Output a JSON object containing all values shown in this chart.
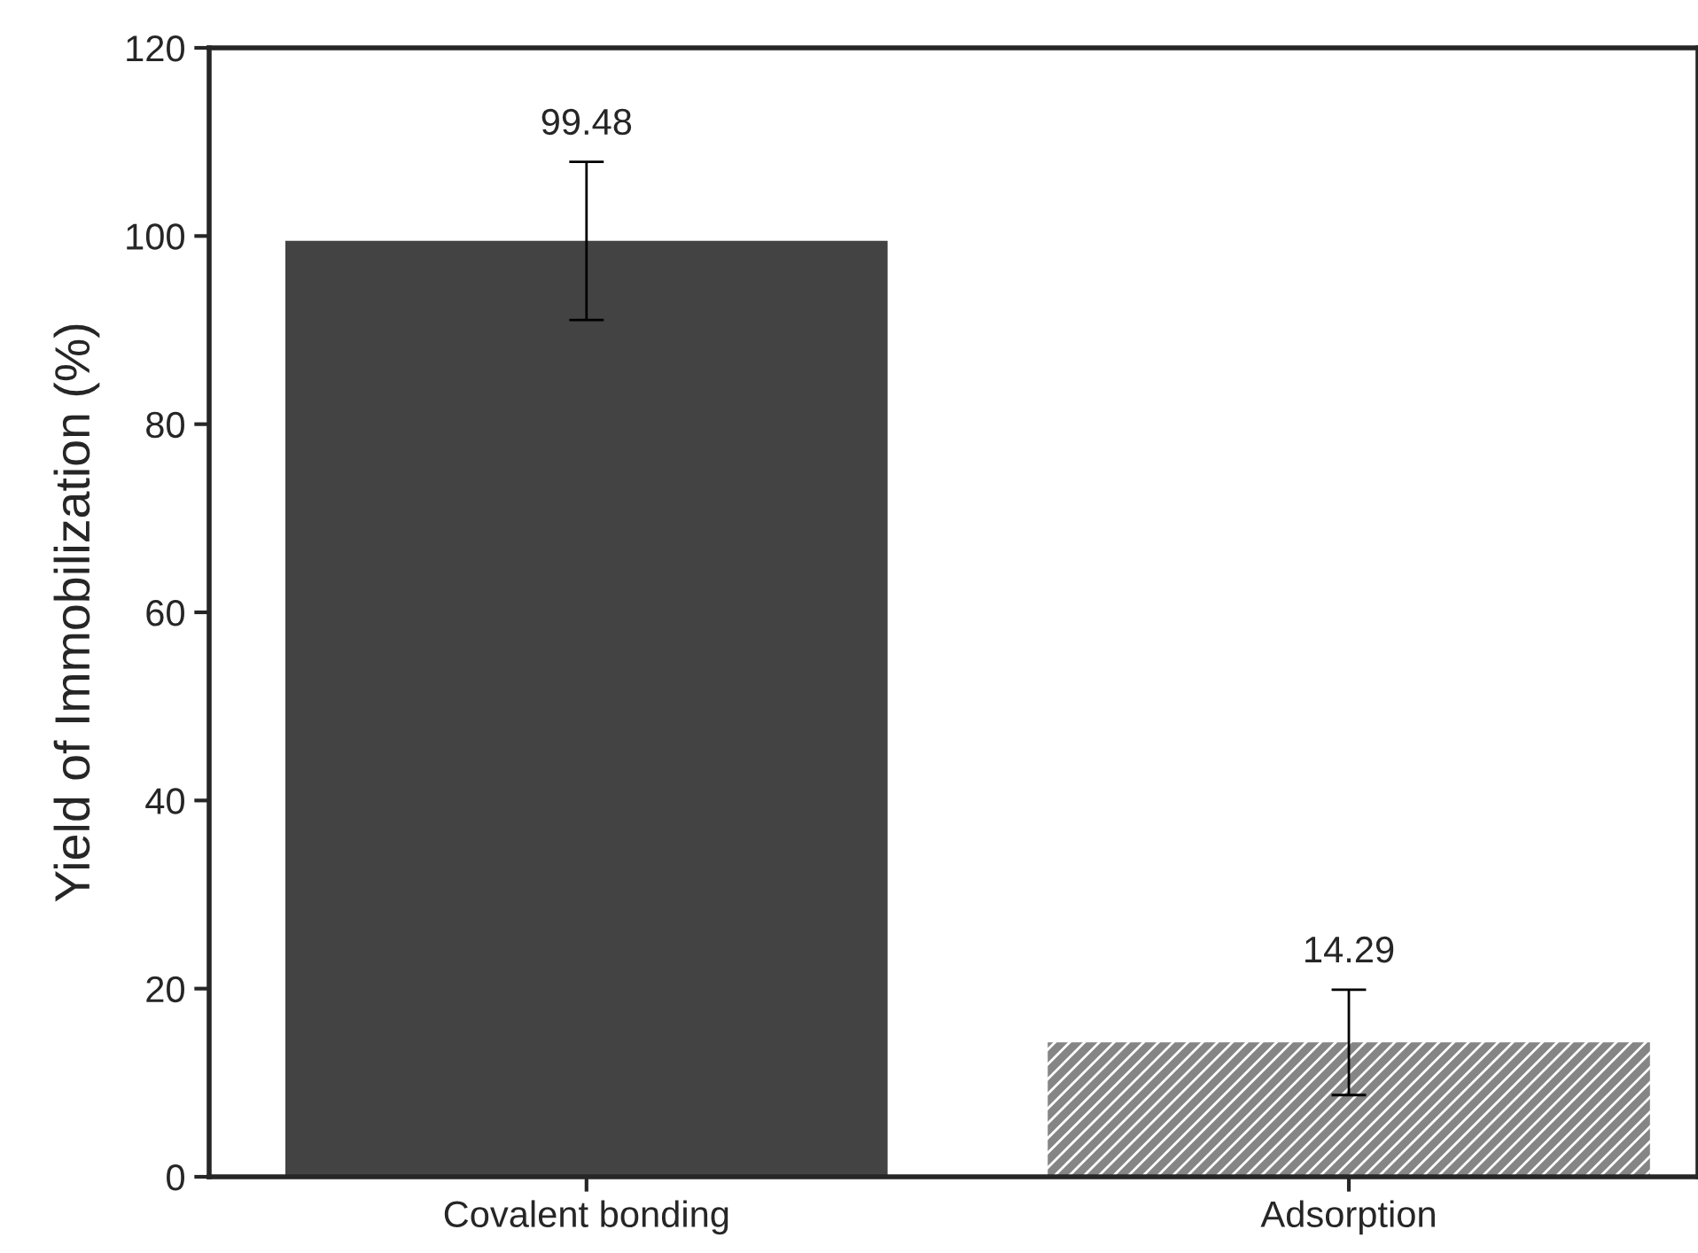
{
  "chart_data": {
    "type": "bar",
    "ylabel": "Yield of Immobilization (%)",
    "categories": [
      "Covalent bonding",
      "Adsorption"
    ],
    "values": [
      99.48,
      14.29
    ],
    "errors": [
      8.4,
      5.6
    ],
    "colors": [
      "#434343",
      "#858585"
    ],
    "data_labels": true,
    "ylim": [
      0,
      120
    ],
    "yticks": [
      0,
      20,
      40,
      60,
      80,
      100,
      120
    ],
    "grid": false
  }
}
